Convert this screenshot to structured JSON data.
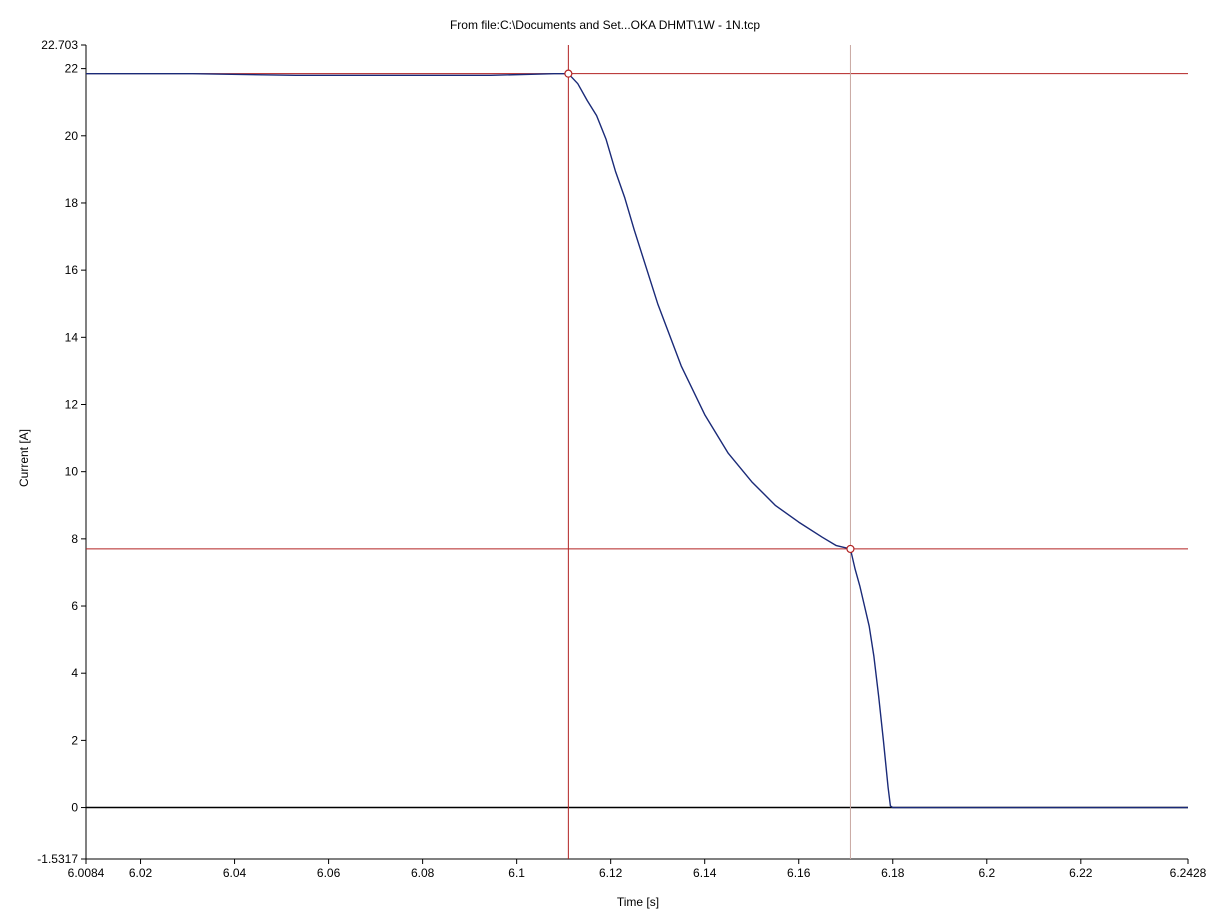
{
  "chart_data": {
    "type": "line",
    "title": "From file:C:\\Documents and Set...OKA DHMT\\1W - 1N.tcp",
    "xlabel": "Time [s]",
    "ylabel": "Current [A]",
    "xlim": [
      6.0084,
      6.2428
    ],
    "ylim": [
      -1.5317,
      22.703
    ],
    "x_ticks": [
      6.0084,
      6.02,
      6.04,
      6.06,
      6.08,
      6.1,
      6.12,
      6.14,
      6.16,
      6.18,
      6.2,
      6.22,
      6.2428
    ],
    "x_tick_labels": [
      "6.0084",
      "6.02",
      "6.04",
      "6.06",
      "6.08",
      "6.1",
      "6.12",
      "6.14",
      "6.16",
      "6.18",
      "6.2",
      "6.22",
      "6.2428"
    ],
    "y_ticks": [
      -1.5317,
      0,
      2,
      4,
      6,
      8,
      10,
      12,
      14,
      16,
      18,
      20,
      22,
      22.703
    ],
    "y_tick_labels": [
      "-1.5317",
      "0",
      "2",
      "4",
      "6",
      "8",
      "10",
      "12",
      "14",
      "16",
      "18",
      "20",
      "22",
      "22.703"
    ],
    "grid": false,
    "series": [
      {
        "color": "#1a2a78",
        "x": [
          6.0084,
          6.031,
          6.053,
          6.0945,
          6.108,
          6.111,
          6.113,
          6.115,
          6.117,
          6.119,
          6.121,
          6.123,
          6.125,
          6.13,
          6.135,
          6.14,
          6.145,
          6.15,
          6.155,
          6.16,
          6.165,
          6.168,
          6.171,
          6.172,
          6.173,
          6.174,
          6.175,
          6.176,
          6.177,
          6.178,
          6.179,
          6.1795,
          6.18,
          6.2,
          6.22,
          6.2428
        ],
        "y": [
          21.85,
          21.85,
          21.8,
          21.8,
          21.85,
          21.85,
          21.55,
          21.05,
          20.6,
          19.9,
          18.95,
          18.15,
          17.2,
          15.0,
          13.15,
          11.7,
          10.55,
          9.7,
          9.0,
          8.5,
          8.05,
          7.8,
          7.7,
          7.1,
          6.6,
          6.0,
          5.4,
          4.5,
          3.3,
          2.0,
          0.6,
          0.05,
          0.0,
          0.0,
          0.0,
          0.0
        ]
      }
    ],
    "cursors": [
      {
        "x": 6.111,
        "y": 21.85,
        "color": "#b22222"
      },
      {
        "x": 6.171,
        "y": 7.7,
        "color": "#b22222",
        "vline_color": "#c8a7a0"
      }
    ],
    "baseline": {
      "y": 0,
      "color": "#000000"
    }
  }
}
